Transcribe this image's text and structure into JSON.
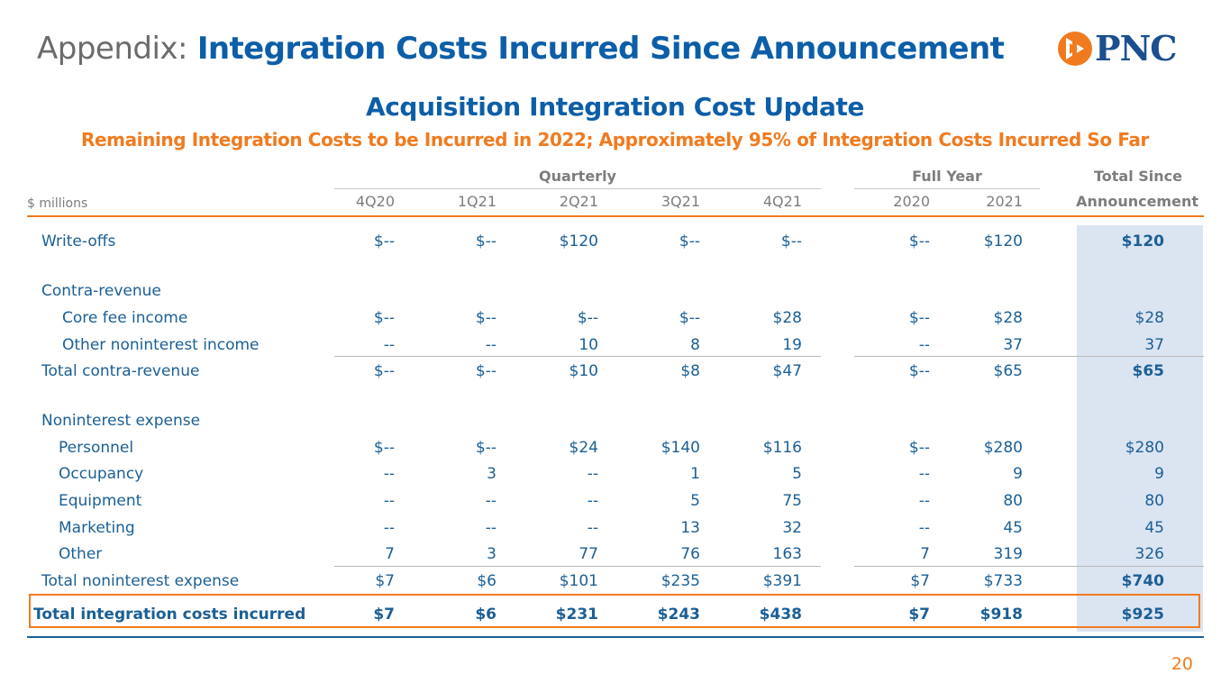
{
  "header": {
    "prefix": "Appendix:",
    "title": "Integration Costs Incurred Since Announcement",
    "logo_text": "PNC"
  },
  "section_title": "Acquisition Integration Cost Update",
  "subtitle": "Remaining Integration Costs to be Incurred in 2022; Approximately 95% of Integration Costs Incurred So Far",
  "table": {
    "group_labels": {
      "quarterly": "Quarterly",
      "full_year": "Full Year",
      "total_since_line1": "Total Since",
      "total_since_line2": "Announcement"
    },
    "units_label": "$ millions",
    "columns": [
      "4Q20",
      "1Q21",
      "2Q21",
      "3Q21",
      "4Q21",
      "2020",
      "2021"
    ],
    "rows": [
      {
        "label": "Write-offs",
        "values": [
          "$--",
          "$--",
          "$120",
          "$--",
          "$--",
          "$--",
          "$120"
        ],
        "total": "$120"
      },
      {
        "label": "Contra-revenue"
      },
      {
        "label": "Core fee income",
        "values": [
          "$--",
          "$--",
          "$--",
          "$--",
          "$28",
          "$--",
          "$28"
        ],
        "total": "$28"
      },
      {
        "label": "Other noninterest income",
        "values": [
          "--",
          "--",
          "10",
          "8",
          "19",
          "--",
          "37"
        ],
        "total": "37"
      },
      {
        "label": "Total contra-revenue",
        "values": [
          "$--",
          "$--",
          "$10",
          "$8",
          "$47",
          "$--",
          "$65"
        ],
        "total": "$65"
      },
      {
        "label": "Noninterest expense"
      },
      {
        "label": "Personnel",
        "values": [
          "$--",
          "$--",
          "$24",
          "$140",
          "$116",
          "$--",
          "$280"
        ],
        "total": "$280"
      },
      {
        "label": "Occupancy",
        "values": [
          "--",
          "3",
          "--",
          "1",
          "5",
          "--",
          "9"
        ],
        "total": "9"
      },
      {
        "label": "Equipment",
        "values": [
          "--",
          "--",
          "--",
          "5",
          "75",
          "--",
          "80"
        ],
        "total": "80"
      },
      {
        "label": "Marketing",
        "values": [
          "--",
          "--",
          "--",
          "13",
          "32",
          "--",
          "45"
        ],
        "total": "45"
      },
      {
        "label": "Other",
        "values": [
          "7",
          "3",
          "77",
          "76",
          "163",
          "7",
          "319"
        ],
        "total": "326"
      },
      {
        "label": "Total noninterest expense",
        "values": [
          "$7",
          "$6",
          "$101",
          "$235",
          "$391",
          "$7",
          "$733"
        ],
        "total": "$740"
      },
      {
        "label": "Total integration costs incurred",
        "values": [
          "$7",
          "$6",
          "$231",
          "$243",
          "$438",
          "$7",
          "$918"
        ],
        "total": "$925"
      }
    ]
  },
  "page_number": "20",
  "colors": {
    "brand_blue": "#0d5ea8",
    "text_blue": "#1b5f95",
    "accent_orange": "#f07b1f",
    "shade_blue": "#dbe4f1",
    "header_gray": "#7d7d7d"
  }
}
